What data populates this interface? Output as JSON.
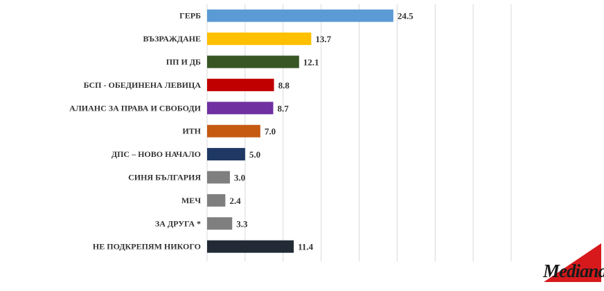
{
  "chart_data": {
    "type": "bar",
    "orientation": "horizontal",
    "categories": [
      "ГЕРБ",
      "ВЪЗРАЖДАНЕ",
      "ПП И ДБ",
      "БСП - ОБЕДИНЕНА ЛЕВИЦА",
      "АЛИАНС ЗА ПРАВА И СВОБОДИ",
      "ИТН",
      "ДПС – НОВО НАЧАЛО",
      "СИНЯ БЪЛГАРИЯ",
      "МЕЧ",
      "ЗА ДРУГА *",
      "НЕ ПОДКРЕПЯМ НИКОГО"
    ],
    "values": [
      24.5,
      13.7,
      12.1,
      8.8,
      8.7,
      7.0,
      5.0,
      3.0,
      2.4,
      3.3,
      11.4
    ],
    "value_labels": [
      "24.5",
      "13.7",
      "12.1",
      "8.8",
      "8.7",
      "7.0",
      "5.0",
      "3.0",
      "2.4",
      "3.3",
      "11.4"
    ],
    "colors": [
      "#5b9bd5",
      "#ffc000",
      "#375623",
      "#c00000",
      "#7030a0",
      "#c55a11",
      "#1f3864",
      "#7f7f7f",
      "#7f7f7f",
      "#7f7f7f",
      "#222a35"
    ],
    "xlim": [
      0,
      40
    ],
    "grid": "vertical",
    "legend": "none",
    "title": "",
    "xlabel": "",
    "ylabel": ""
  },
  "logo": {
    "text": "Mediana",
    "text_color": "#1a1a1a",
    "accent_color": "#d7191c"
  }
}
